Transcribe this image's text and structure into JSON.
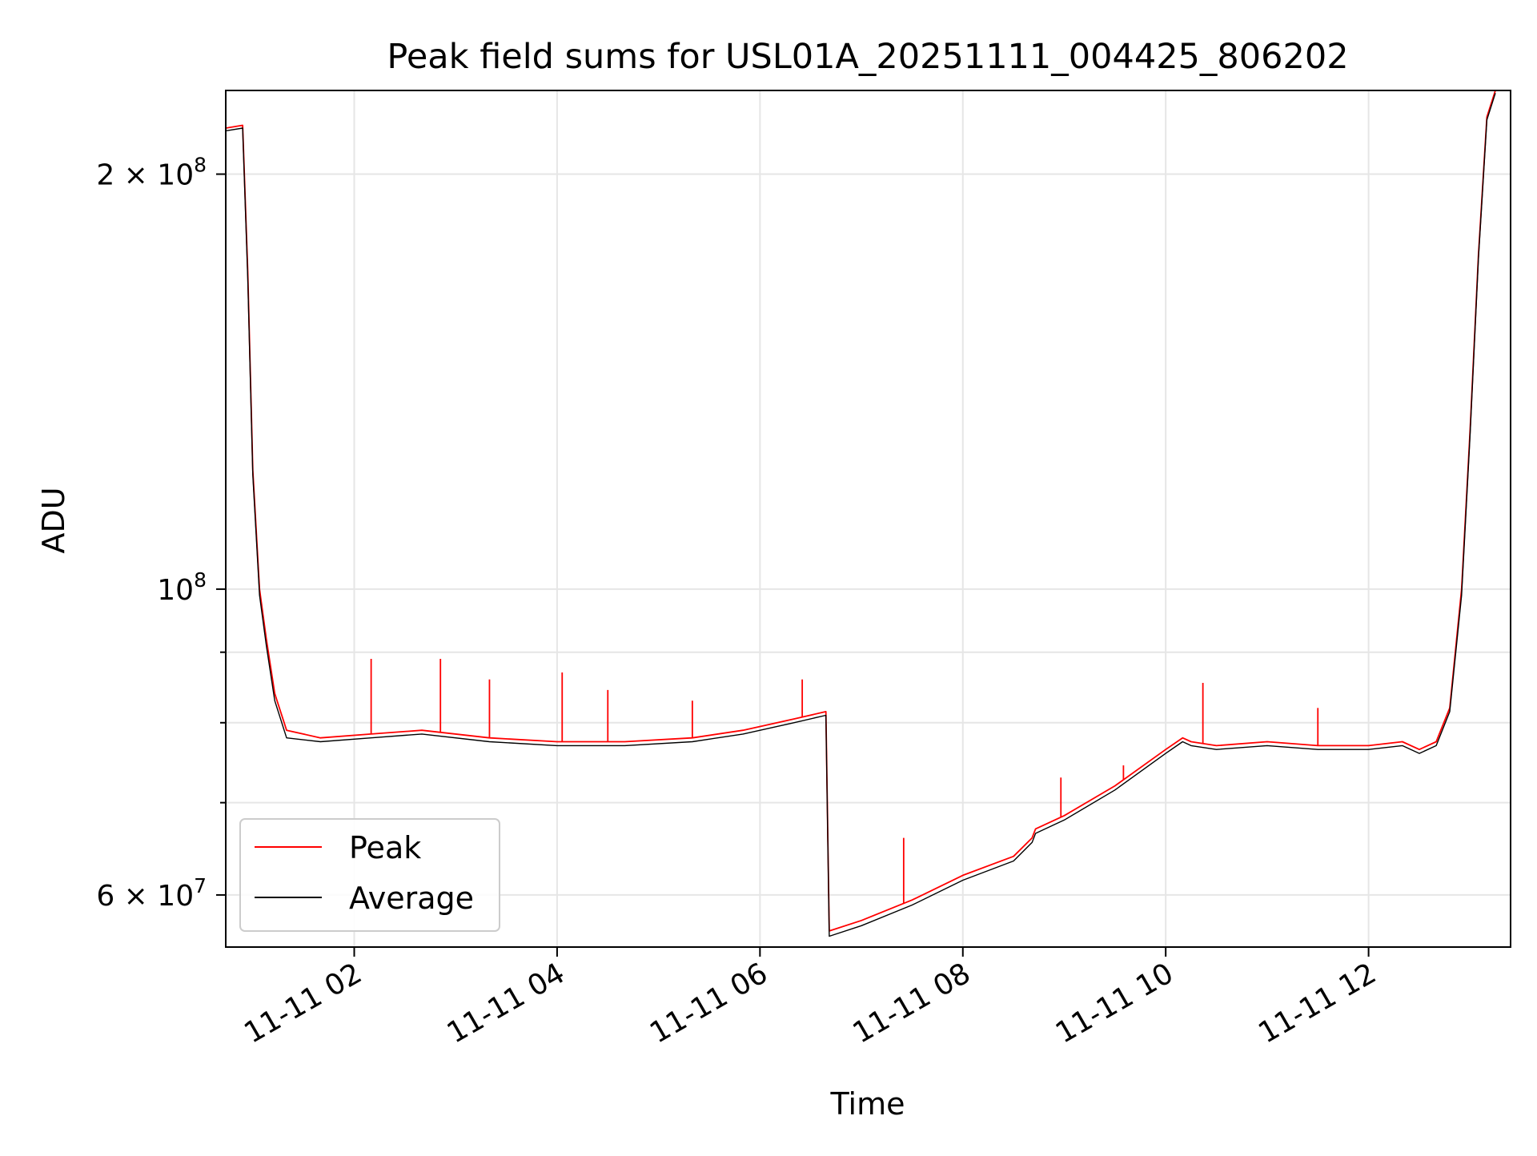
{
  "chart_data": {
    "type": "line",
    "title": "Peak field sums for USL01A_20251111_004425_806202",
    "xlabel": "Time",
    "ylabel": "ADU",
    "yscale": "log",
    "xlim": [
      "2025-11-11 00:44",
      "2025-11-11 13:24"
    ],
    "ylim": [
      55000000,
      230000000
    ],
    "grid": true,
    "legend_position": "lower-left",
    "x_ticks": [
      "2025-11-11 02:00",
      "2025-11-11 04:00",
      "2025-11-11 06:00",
      "2025-11-11 08:00",
      "2025-11-11 10:00",
      "2025-11-11 12:00"
    ],
    "x_tick_labels": [
      "11-11 02",
      "11-11 04",
      "11-11 06",
      "11-11 08",
      "11-11 10",
      "11-11 12"
    ],
    "y_ticks": [
      {
        "value": 200000000,
        "base": "2 × 10",
        "exp": "8"
      },
      {
        "value": 100000000,
        "base": "10",
        "exp": "8"
      },
      {
        "value": 60000000,
        "base": "6 × 10",
        "exp": "7"
      }
    ],
    "y_minor_ticks": [
      70000000,
      80000000,
      90000000
    ],
    "x": [
      "2025-11-11 00:44",
      "2025-11-11 00:54",
      "2025-11-11 00:57",
      "2025-11-11 01:00",
      "2025-11-11 01:04",
      "2025-11-11 01:08",
      "2025-11-11 01:13",
      "2025-11-11 01:20",
      "2025-11-11 01:40",
      "2025-11-11 02:10",
      "2025-11-11 02:40",
      "2025-11-11 03:20",
      "2025-11-11 04:00",
      "2025-11-11 04:40",
      "2025-11-11 05:20",
      "2025-11-11 05:50",
      "2025-11-11 06:20",
      "2025-11-11 06:39",
      "2025-11-11 06:41",
      "2025-11-11 07:00",
      "2025-11-11 07:30",
      "2025-11-11 08:00",
      "2025-11-11 08:30",
      "2025-11-11 08:41",
      "2025-11-11 08:43",
      "2025-11-11 09:00",
      "2025-11-11 09:30",
      "2025-11-11 10:00",
      "2025-11-11 10:10",
      "2025-11-11 10:15",
      "2025-11-11 10:30",
      "2025-11-11 11:00",
      "2025-11-11 11:30",
      "2025-11-11 12:00",
      "2025-11-11 12:20",
      "2025-11-11 12:30",
      "2025-11-11 12:40",
      "2025-11-11 12:48",
      "2025-11-11 12:55",
      "2025-11-11 13:00",
      "2025-11-11 13:05",
      "2025-11-11 13:10",
      "2025-11-11 13:15"
    ],
    "series": [
      {
        "name": "Peak",
        "color": "#ff0000",
        "values": [
          216000000,
          217000000,
          170000000,
          122000000,
          100000000,
          92000000,
          84000000,
          79000000,
          78000000,
          78500000,
          79000000,
          78000000,
          77500000,
          77500000,
          78000000,
          79000000,
          80500000,
          81500000,
          56500000,
          57500000,
          59500000,
          62000000,
          64000000,
          66000000,
          67000000,
          68500000,
          72000000,
          76500000,
          78000000,
          77500000,
          77000000,
          77500000,
          77000000,
          77000000,
          77500000,
          76500000,
          77500000,
          82000000,
          100000000,
          130000000,
          175000000,
          220000000,
          230000000
        ],
        "spikes": [
          [
            "2025-11-11 02:10",
            89000000
          ],
          [
            "2025-11-11 02:51",
            89000000
          ],
          [
            "2025-11-11 03:20",
            86000000
          ],
          [
            "2025-11-11 04:03",
            87000000
          ],
          [
            "2025-11-11 04:30",
            84500000
          ],
          [
            "2025-11-11 05:20",
            83000000
          ],
          [
            "2025-11-11 06:25",
            86000000
          ],
          [
            "2025-11-11 07:25",
            66000000
          ],
          [
            "2025-11-11 08:58",
            73000000
          ],
          [
            "2025-11-11 09:35",
            74500000
          ],
          [
            "2025-11-11 10:22",
            85500000
          ],
          [
            "2025-11-11 11:30",
            82000000
          ]
        ]
      },
      {
        "name": "Average",
        "color": "#000000",
        "values": [
          215000000,
          216000000,
          168000000,
          121000000,
          99000000,
          91000000,
          83000000,
          78000000,
          77500000,
          78000000,
          78500000,
          77500000,
          77000000,
          77000000,
          77500000,
          78500000,
          80000000,
          81000000,
          56000000,
          57000000,
          59000000,
          61500000,
          63500000,
          65500000,
          66500000,
          68000000,
          71500000,
          76000000,
          77500000,
          77000000,
          76500000,
          77000000,
          76500000,
          76500000,
          77000000,
          76000000,
          77000000,
          81500000,
          99000000,
          129000000,
          174000000,
          219000000,
          229000000
        ]
      }
    ]
  }
}
